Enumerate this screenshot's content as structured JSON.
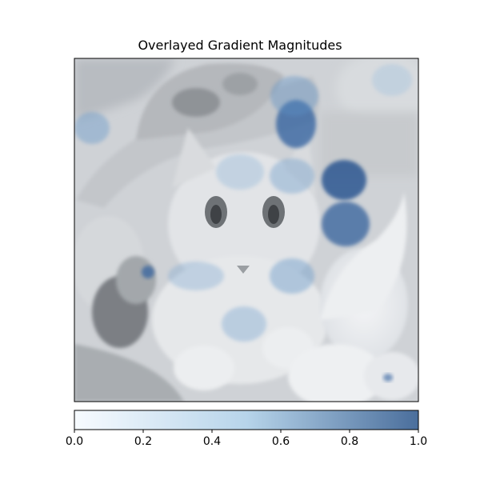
{
  "chart_data": {
    "type": "heatmap",
    "title": "Overlayed Gradient Magnitudes",
    "xlabel": "",
    "ylabel": "",
    "background": "grayscale photo of a kitten wearing a straw hat among white flowers",
    "colormap": "Blues",
    "colorbar": {
      "orientation": "horizontal",
      "placement": "bottom",
      "range": [
        0,
        1
      ],
      "ticks": [
        0.0,
        0.2,
        0.4,
        0.6,
        0.8,
        1.0
      ],
      "tick_labels": [
        "0.0",
        "0.2",
        "0.4",
        "0.6",
        "0.8",
        "1.0"
      ]
    },
    "grid": "off",
    "axis_ticks": "hidden"
  },
  "colors": {
    "cmap_low": "#f7fbff",
    "cmap_mid": "#9ecae1",
    "cmap_high": "#4a6e9c",
    "hotspot_dark": "#1f4e8c",
    "hotspot_mid": "#4f8fc9"
  }
}
